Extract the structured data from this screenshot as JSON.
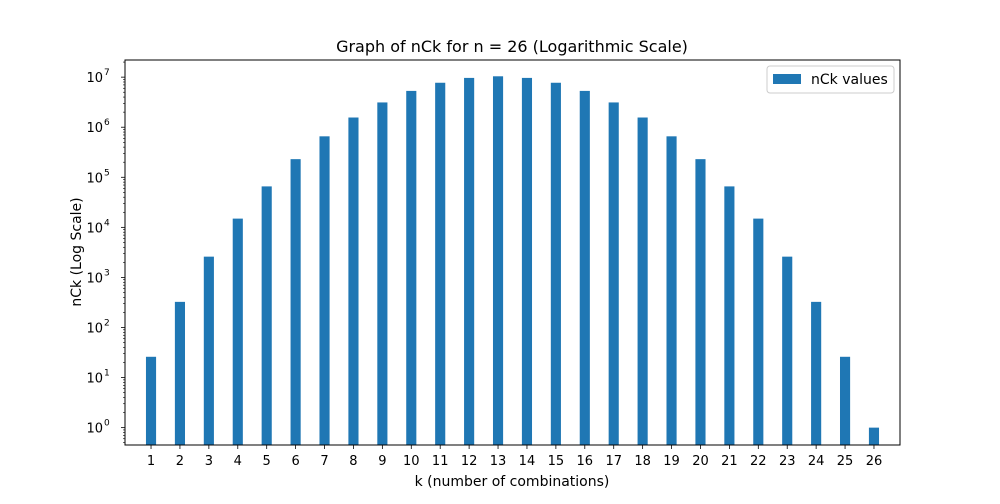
{
  "chart_data": {
    "type": "bar",
    "title": "Graph of nCk for n = 26 (Logarithmic Scale)",
    "xlabel": "k (number of combinations)",
    "ylabel": "nCk (Log Scale)",
    "yscale": "log",
    "ylim": [
      0.45,
      22000000
    ],
    "xlim": [
      0.1,
      26.9
    ],
    "grid": false,
    "legend_position": "top-right",
    "bar_color": "#1f77b4",
    "categories": [
      "1",
      "2",
      "3",
      "4",
      "5",
      "6",
      "7",
      "8",
      "9",
      "10",
      "11",
      "12",
      "13",
      "14",
      "15",
      "16",
      "17",
      "18",
      "19",
      "20",
      "21",
      "22",
      "23",
      "24",
      "25",
      "26"
    ],
    "series": [
      {
        "name": "nCk values",
        "values": [
          26,
          325,
          2600,
          14950,
          65780,
          230230,
          657800,
          1562275,
          3124550,
          5311735,
          7726160,
          9657700,
          10400600,
          9657700,
          7726160,
          5311735,
          3124550,
          1562275,
          657800,
          230230,
          65780,
          14950,
          2600,
          325,
          26,
          1
        ]
      }
    ],
    "y_ticks": [
      {
        "value": 1,
        "base": "10",
        "exp": "0"
      },
      {
        "value": 10,
        "base": "10",
        "exp": "1"
      },
      {
        "value": 100,
        "base": "10",
        "exp": "2"
      },
      {
        "value": 1000,
        "base": "10",
        "exp": "3"
      },
      {
        "value": 10000,
        "base": "10",
        "exp": "4"
      },
      {
        "value": 100000,
        "base": "10",
        "exp": "5"
      },
      {
        "value": 1000000,
        "base": "10",
        "exp": "6"
      },
      {
        "value": 10000000,
        "base": "10",
        "exp": "7"
      }
    ]
  }
}
